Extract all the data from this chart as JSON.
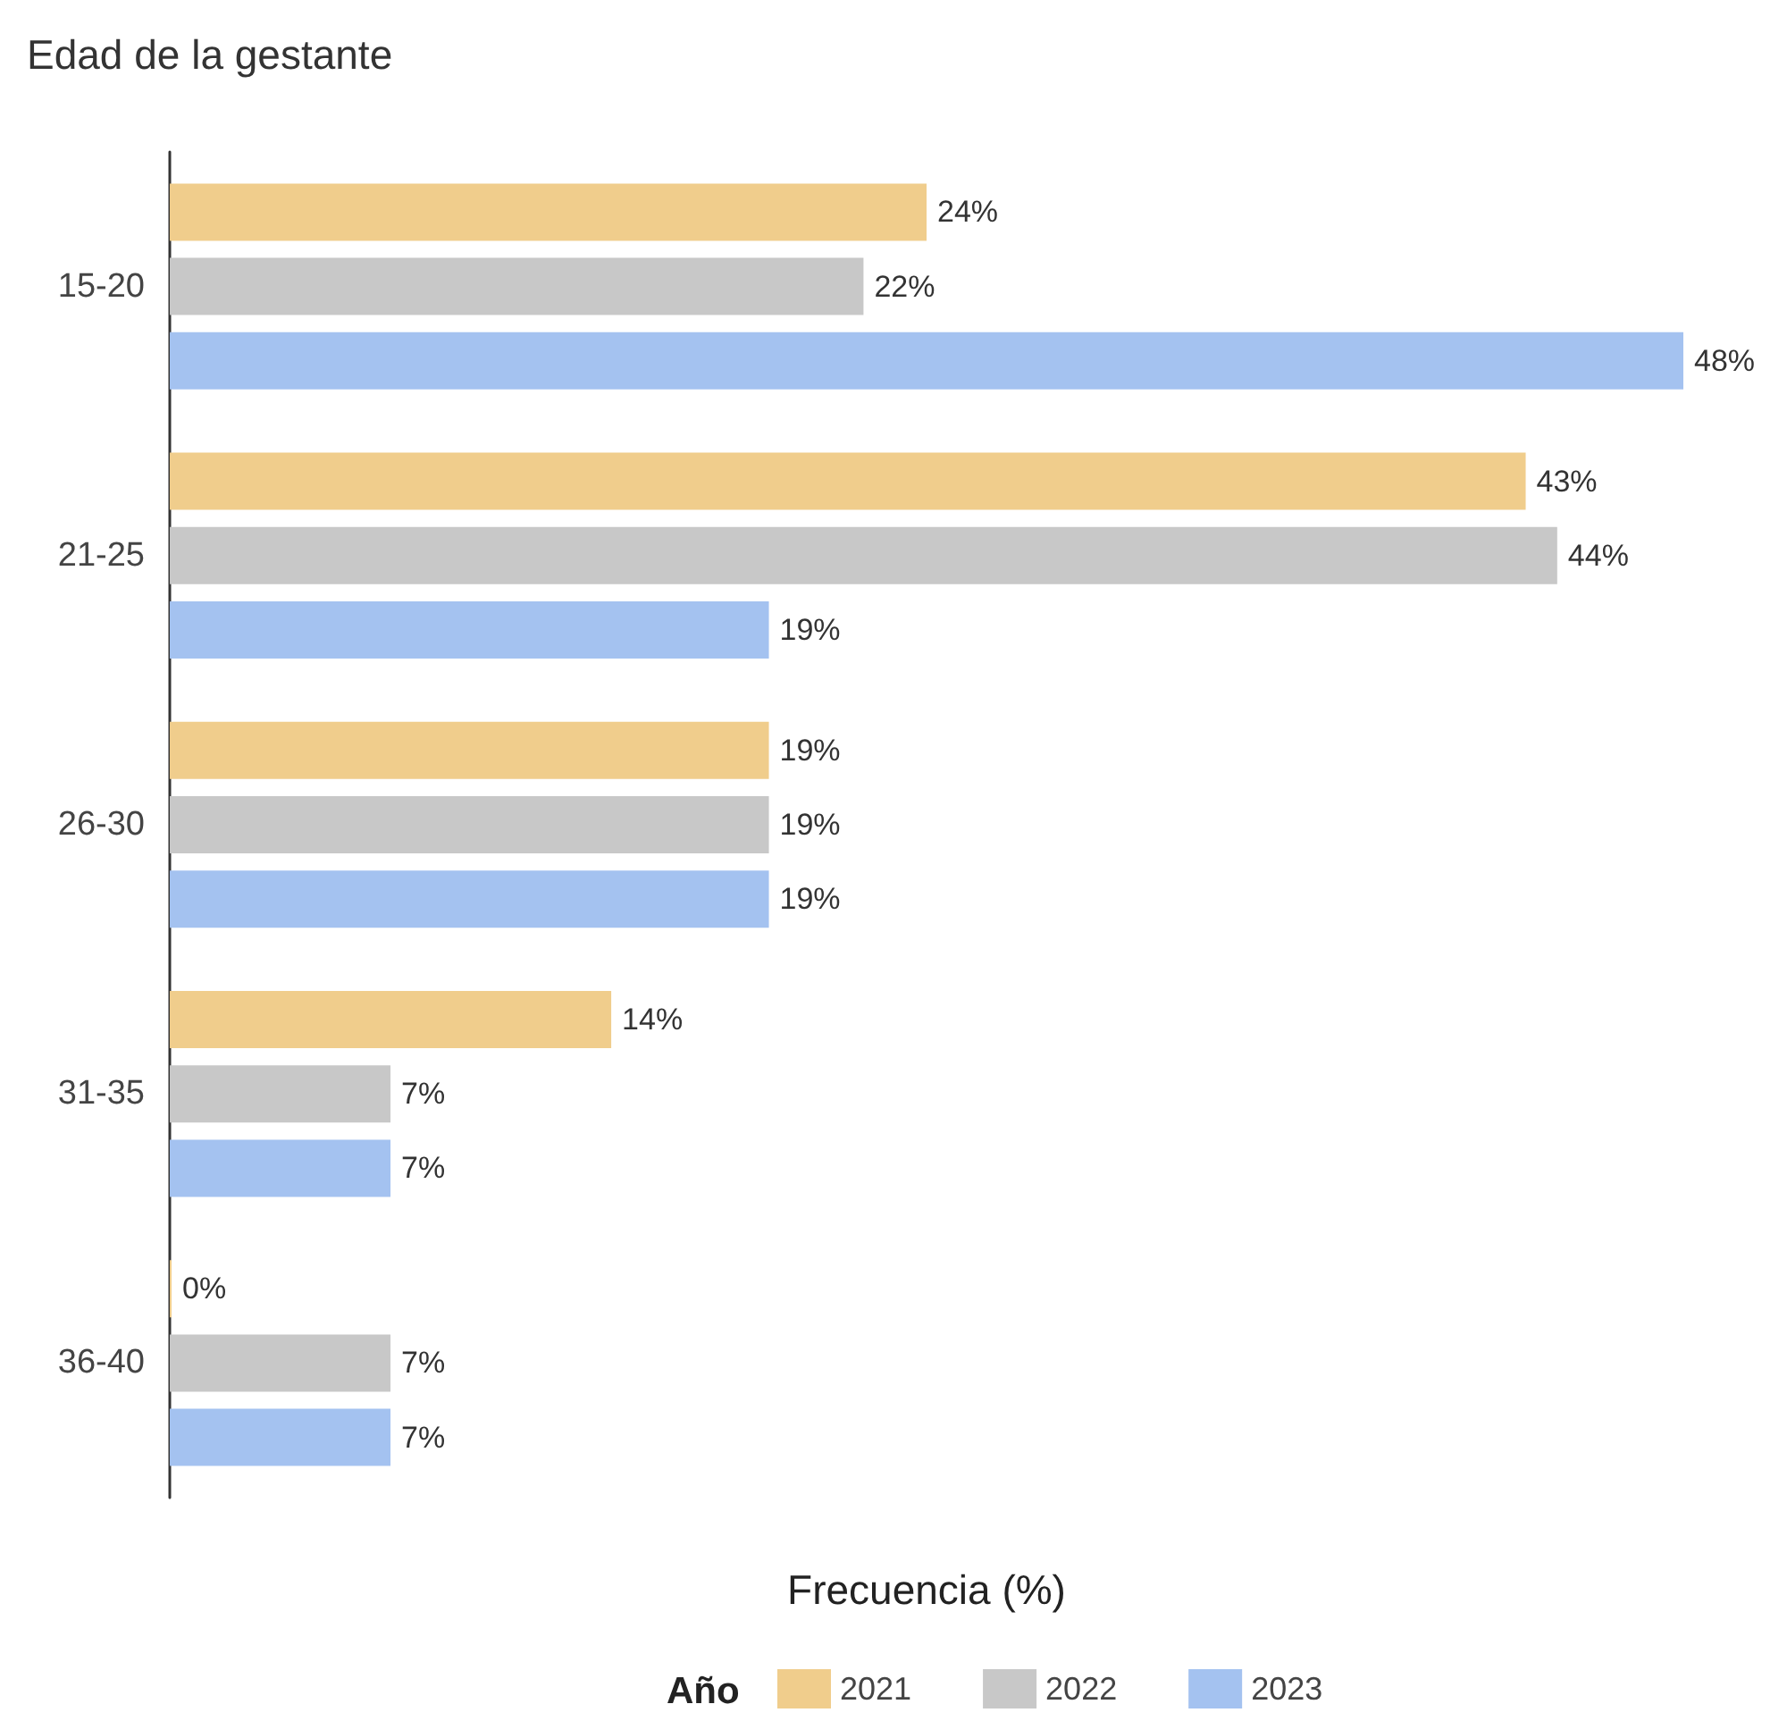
{
  "chart_data": {
    "type": "bar",
    "orientation": "horizontal",
    "title": "Edad de la gestante",
    "xlabel": "Frecuencia (%)",
    "legend_title": "Año",
    "legend": "bottom",
    "grid": false,
    "categories": [
      "15-20",
      "21-25",
      "26-30",
      "31-35",
      "36-40"
    ],
    "series": [
      {
        "name": "2021",
        "color": "#f0cd8c",
        "values": [
          24,
          43,
          19,
          14,
          0
        ],
        "value_labels": [
          "24%",
          "43%",
          "19%",
          "14%",
          "0%"
        ]
      },
      {
        "name": "2022",
        "color": "#c8c8c8",
        "values": [
          22,
          44,
          19,
          7,
          7
        ],
        "value_labels": [
          "22%",
          "44%",
          "19%",
          "7%",
          "7%"
        ]
      },
      {
        "name": "2023",
        "color": "#a4c2f0",
        "values": [
          48,
          19,
          19,
          7,
          7
        ],
        "value_labels": [
          "48%",
          "19%",
          "19%",
          "7%",
          "7%"
        ]
      }
    ]
  }
}
